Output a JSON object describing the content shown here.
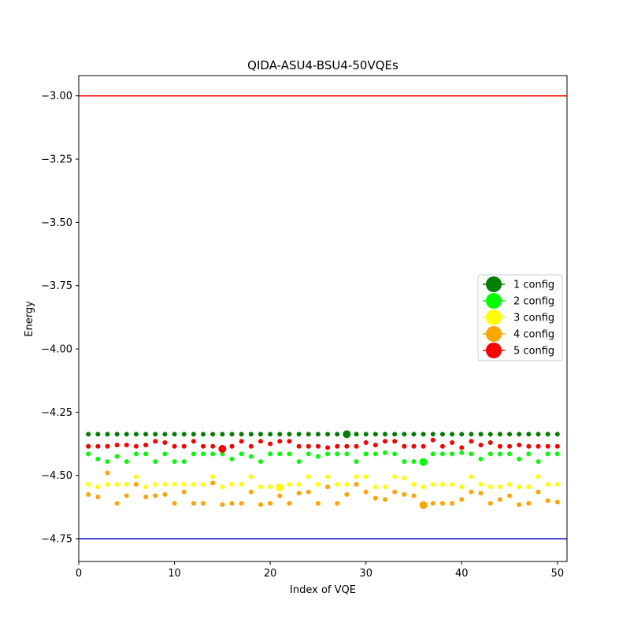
{
  "chart_data": {
    "type": "scatter",
    "title": "QIDA-ASU4-BSU4-50VQEs",
    "xlabel": "Index of VQE",
    "ylabel": "Energy",
    "xlim": [
      0,
      51
    ],
    "ylim": [
      -4.84,
      -2.92
    ],
    "xticks": [
      0,
      10,
      20,
      30,
      40,
      50
    ],
    "yticks": [
      -4.75,
      -4.5,
      -4.25,
      -4.0,
      -3.75,
      -3.5,
      -3.25,
      -3.0
    ],
    "ytick_labels": [
      "−4.75",
      "−4.50",
      "−4.25",
      "−4.00",
      "−3.75",
      "−3.50",
      "−3.25",
      "−3.00"
    ],
    "xtick_labels": [
      "0",
      "10",
      "20",
      "30",
      "40",
      "50"
    ],
    "grid": false,
    "legend_position": "right",
    "hlines": [
      {
        "y": -3.0,
        "color": "#ff0000"
      },
      {
        "y": -4.75,
        "color": "#0000cd"
      }
    ],
    "series": [
      {
        "name": "1 config",
        "color": "#008000",
        "x": [
          1,
          2,
          3,
          4,
          5,
          6,
          7,
          8,
          9,
          10,
          11,
          12,
          13,
          14,
          15,
          16,
          17,
          18,
          19,
          20,
          21,
          22,
          23,
          24,
          25,
          26,
          27,
          28,
          29,
          30,
          31,
          32,
          33,
          34,
          35,
          36,
          37,
          38,
          39,
          40,
          41,
          42,
          43,
          44,
          45,
          46,
          47,
          48,
          49,
          50
        ],
        "y": [
          -4.337,
          -4.337,
          -4.337,
          -4.337,
          -4.337,
          -4.337,
          -4.337,
          -4.337,
          -4.337,
          -4.337,
          -4.337,
          -4.337,
          -4.337,
          -4.337,
          -4.337,
          -4.337,
          -4.337,
          -4.337,
          -4.337,
          -4.337,
          -4.337,
          -4.337,
          -4.337,
          -4.337,
          -4.337,
          -4.337,
          -4.337,
          -4.337,
          -4.337,
          -4.337,
          -4.337,
          -4.337,
          -4.337,
          -4.337,
          -4.337,
          -4.337,
          -4.337,
          -4.337,
          -4.337,
          -4.337,
          -4.337,
          -4.337,
          -4.337,
          -4.337,
          -4.337,
          -4.337,
          -4.337,
          -4.337,
          -4.337,
          -4.337
        ],
        "highlight": {
          "x": 28,
          "y": -4.337
        }
      },
      {
        "name": "2 config",
        "color": "#00ff00",
        "x": [
          1,
          2,
          3,
          4,
          5,
          6,
          7,
          8,
          9,
          10,
          11,
          12,
          13,
          14,
          15,
          16,
          17,
          18,
          19,
          20,
          21,
          22,
          23,
          24,
          25,
          26,
          27,
          28,
          29,
          30,
          31,
          32,
          33,
          34,
          35,
          36,
          37,
          38,
          39,
          40,
          41,
          42,
          43,
          44,
          45,
          46,
          47,
          48,
          49,
          50
        ],
        "y": [
          -4.415,
          -4.435,
          -4.445,
          -4.425,
          -4.445,
          -4.415,
          -4.415,
          -4.445,
          -4.415,
          -4.445,
          -4.445,
          -4.415,
          -4.415,
          -4.415,
          -4.415,
          -4.435,
          -4.415,
          -4.425,
          -4.445,
          -4.415,
          -4.415,
          -4.415,
          -4.445,
          -4.415,
          -4.425,
          -4.415,
          -4.415,
          -4.415,
          -4.445,
          -4.415,
          -4.415,
          -4.41,
          -4.415,
          -4.445,
          -4.445,
          -4.445,
          -4.415,
          -4.415,
          -4.415,
          -4.41,
          -4.415,
          -4.435,
          -4.415,
          -4.415,
          -4.415,
          -4.435,
          -4.415,
          -4.445,
          -4.415,
          -4.415
        ],
        "highlight": {
          "x": 36,
          "y": -4.447
        }
      },
      {
        "name": "3 config",
        "color": "#ffff00",
        "x": [
          1,
          2,
          3,
          4,
          5,
          6,
          7,
          8,
          9,
          10,
          11,
          12,
          13,
          14,
          15,
          16,
          17,
          18,
          19,
          20,
          21,
          22,
          23,
          24,
          25,
          26,
          27,
          28,
          29,
          30,
          31,
          32,
          33,
          34,
          35,
          36,
          37,
          38,
          39,
          40,
          41,
          42,
          43,
          44,
          45,
          46,
          47,
          48,
          49,
          50
        ],
        "y": [
          -4.535,
          -4.545,
          -4.535,
          -4.535,
          -4.535,
          -4.505,
          -4.545,
          -4.535,
          -4.535,
          -4.535,
          -4.535,
          -4.535,
          -4.535,
          -4.505,
          -4.545,
          -4.535,
          -4.535,
          -4.505,
          -4.545,
          -4.545,
          -4.545,
          -4.535,
          -4.535,
          -4.505,
          -4.535,
          -4.505,
          -4.535,
          -4.535,
          -4.505,
          -4.505,
          -4.545,
          -4.545,
          -4.505,
          -4.51,
          -4.535,
          -4.545,
          -4.535,
          -4.535,
          -4.535,
          -4.545,
          -4.505,
          -4.535,
          -4.545,
          -4.545,
          -4.535,
          -4.545,
          -4.545,
          -4.505,
          -4.535,
          -4.535
        ],
        "highlight": {
          "x": 21,
          "y": -4.547
        }
      },
      {
        "name": "4 config",
        "color": "#ffa500",
        "x": [
          1,
          2,
          3,
          4,
          5,
          6,
          7,
          8,
          9,
          10,
          11,
          12,
          13,
          14,
          15,
          16,
          17,
          18,
          19,
          20,
          21,
          22,
          23,
          24,
          25,
          26,
          27,
          28,
          29,
          30,
          31,
          32,
          33,
          34,
          35,
          36,
          37,
          38,
          39,
          40,
          41,
          42,
          43,
          44,
          45,
          46,
          47,
          48,
          49,
          50
        ],
        "y": [
          -4.575,
          -4.585,
          -4.49,
          -4.61,
          -4.58,
          -4.535,
          -4.585,
          -4.58,
          -4.575,
          -4.61,
          -4.565,
          -4.61,
          -4.61,
          -4.53,
          -4.615,
          -4.61,
          -4.61,
          -4.565,
          -4.615,
          -4.61,
          -4.58,
          -4.61,
          -4.57,
          -4.565,
          -4.61,
          -4.545,
          -4.61,
          -4.575,
          -4.535,
          -4.565,
          -4.59,
          -4.595,
          -4.565,
          -4.575,
          -4.58,
          -4.617,
          -4.61,
          -4.61,
          -4.61,
          -4.595,
          -4.565,
          -4.57,
          -4.61,
          -4.595,
          -4.58,
          -4.615,
          -4.61,
          -4.565,
          -4.6,
          -4.605
        ],
        "highlight": {
          "x": 36,
          "y": -4.617
        }
      },
      {
        "name": "5 config",
        "color": "#ff0000",
        "x": [
          1,
          2,
          3,
          4,
          5,
          6,
          7,
          8,
          9,
          10,
          11,
          12,
          13,
          14,
          15,
          16,
          17,
          18,
          19,
          20,
          21,
          22,
          23,
          24,
          25,
          26,
          27,
          28,
          29,
          30,
          31,
          32,
          33,
          34,
          35,
          36,
          37,
          38,
          39,
          40,
          41,
          42,
          43,
          44,
          45,
          46,
          47,
          48,
          49,
          50
        ],
        "y": [
          -4.385,
          -4.385,
          -4.385,
          -4.38,
          -4.38,
          -4.385,
          -4.38,
          -4.365,
          -4.37,
          -4.385,
          -4.385,
          -4.365,
          -4.385,
          -4.385,
          -4.395,
          -4.385,
          -4.365,
          -4.385,
          -4.365,
          -4.375,
          -4.365,
          -4.365,
          -4.385,
          -4.385,
          -4.385,
          -4.39,
          -4.385,
          -4.385,
          -4.385,
          -4.37,
          -4.38,
          -4.365,
          -4.365,
          -4.385,
          -4.385,
          -4.385,
          -4.36,
          -4.385,
          -4.37,
          -4.39,
          -4.365,
          -4.38,
          -4.37,
          -4.385,
          -4.385,
          -4.38,
          -4.385,
          -4.385,
          -4.385,
          -4.385
        ],
        "highlight": {
          "x": 15,
          "y": -4.395
        }
      }
    ]
  }
}
